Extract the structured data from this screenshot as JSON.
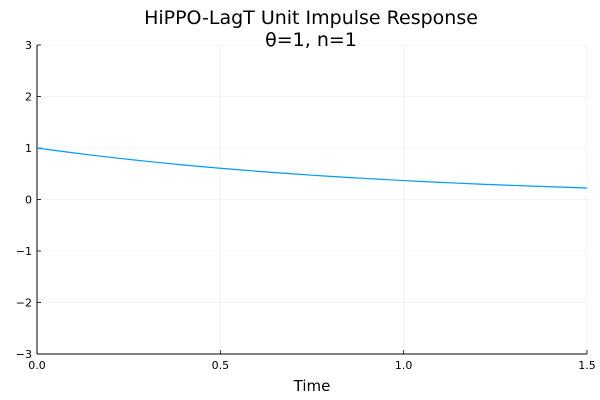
{
  "chart_data": {
    "type": "line",
    "title": "HiPPO-LagT Unit Impulse Response",
    "subtitle": "θ=1, n=1",
    "xlabel": "Time",
    "ylabel": "",
    "xlim": [
      0,
      1.5
    ],
    "ylim": [
      -3,
      3
    ],
    "x_ticks": [
      0,
      0.5,
      1,
      1.5
    ],
    "x_tick_labels": [
      "0.0",
      "0.5",
      "1.0",
      "1.5"
    ],
    "y_ticks": [
      -3,
      -2,
      -1,
      0,
      1,
      2,
      3
    ],
    "y_tick_labels": [
      "−3",
      "−2",
      "−1",
      "0",
      "1",
      "2",
      "3"
    ],
    "grid": true,
    "legend": "none",
    "series": [
      {
        "color": "#009AFA",
        "x": [
          0,
          0.05,
          0.1,
          0.15,
          0.2,
          0.25,
          0.3,
          0.35,
          0.4,
          0.45,
          0.5,
          0.55,
          0.6,
          0.65,
          0.7,
          0.75,
          0.8,
          0.85,
          0.9,
          0.95,
          1.0,
          1.05,
          1.1,
          1.15,
          1.2,
          1.25,
          1.3,
          1.35,
          1.4,
          1.45,
          1.5
        ],
        "y": [
          1.0,
          0.951,
          0.905,
          0.861,
          0.819,
          0.779,
          0.741,
          0.705,
          0.67,
          0.638,
          0.607,
          0.577,
          0.549,
          0.522,
          0.497,
          0.472,
          0.449,
          0.427,
          0.407,
          0.387,
          0.368,
          0.35,
          0.333,
          0.317,
          0.301,
          0.287,
          0.273,
          0.259,
          0.247,
          0.235,
          0.223
        ]
      }
    ]
  }
}
